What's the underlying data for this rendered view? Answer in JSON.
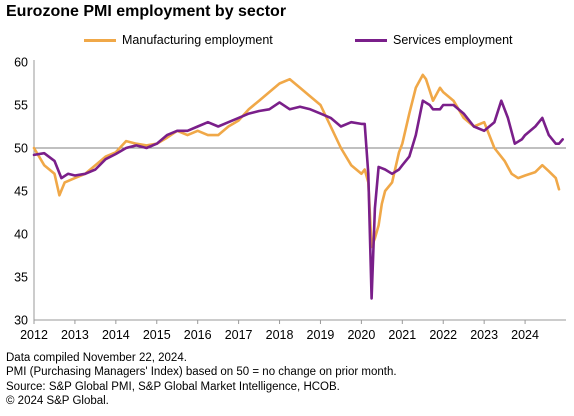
{
  "title": "Eurozone PMI employment by sector",
  "footer": {
    "line1": "Data compiled November 22, 2024.",
    "line2": "PMI (Purchasing Managers' Index) based on 50 = no change on prior month.",
    "line3": "Source: S&P Global PMI, S&P Global Market Intelligence, HCOB.",
    "line4": "© 2024 S&P Global."
  },
  "chart_data": {
    "type": "line",
    "title": "Eurozone PMI employment by sector",
    "xlabel": "",
    "ylabel": "",
    "xlim": [
      2012,
      2024.92
    ],
    "ylim": [
      30,
      60
    ],
    "x_ticks": [
      "2012",
      "2013",
      "2014",
      "2015",
      "2016",
      "2017",
      "2018",
      "2019",
      "2020",
      "2021",
      "2022",
      "2023",
      "2024"
    ],
    "y_ticks": [
      30,
      35,
      40,
      45,
      50,
      55,
      60
    ],
    "reference_line": 50,
    "legend_position": "top",
    "grid": false,
    "series": [
      {
        "name": "Manufacturing employment",
        "color": "#F0A848",
        "points": [
          [
            2012.0,
            50.0
          ],
          [
            2012.25,
            48.0
          ],
          [
            2012.5,
            47.0
          ],
          [
            2012.62,
            44.5
          ],
          [
            2012.75,
            46.0
          ],
          [
            2013.0,
            46.5
          ],
          [
            2013.25,
            47.0
          ],
          [
            2013.5,
            48.0
          ],
          [
            2013.75,
            49.0
          ],
          [
            2014.0,
            49.5
          ],
          [
            2014.25,
            50.8
          ],
          [
            2014.5,
            50.5
          ],
          [
            2014.75,
            50.3
          ],
          [
            2015.0,
            50.5
          ],
          [
            2015.25,
            51.2
          ],
          [
            2015.5,
            52.0
          ],
          [
            2015.75,
            51.5
          ],
          [
            2016.0,
            52.0
          ],
          [
            2016.25,
            51.5
          ],
          [
            2016.5,
            51.5
          ],
          [
            2016.75,
            52.5
          ],
          [
            2017.0,
            53.2
          ],
          [
            2017.25,
            54.5
          ],
          [
            2017.5,
            55.5
          ],
          [
            2017.75,
            56.5
          ],
          [
            2018.0,
            57.5
          ],
          [
            2018.25,
            58.0
          ],
          [
            2018.5,
            57.0
          ],
          [
            2018.75,
            56.0
          ],
          [
            2019.0,
            55.0
          ],
          [
            2019.25,
            52.5
          ],
          [
            2019.5,
            50.0
          ],
          [
            2019.75,
            48.0
          ],
          [
            2020.0,
            47.0
          ],
          [
            2020.08,
            47.5
          ],
          [
            2020.17,
            46.0
          ],
          [
            2020.25,
            38.5
          ],
          [
            2020.33,
            39.5
          ],
          [
            2020.42,
            41.0
          ],
          [
            2020.5,
            43.5
          ],
          [
            2020.58,
            45.0
          ],
          [
            2020.75,
            46.0
          ],
          [
            2020.92,
            49.5
          ],
          [
            2021.0,
            50.5
          ],
          [
            2021.17,
            54.0
          ],
          [
            2021.33,
            57.0
          ],
          [
            2021.5,
            58.5
          ],
          [
            2021.58,
            58.0
          ],
          [
            2021.75,
            55.5
          ],
          [
            2021.92,
            57.0
          ],
          [
            2022.0,
            56.5
          ],
          [
            2022.25,
            55.5
          ],
          [
            2022.5,
            53.5
          ],
          [
            2022.75,
            52.5
          ],
          [
            2023.0,
            53.0
          ],
          [
            2023.25,
            50.0
          ],
          [
            2023.5,
            48.5
          ],
          [
            2023.67,
            47.0
          ],
          [
            2023.83,
            46.5
          ],
          [
            2024.0,
            46.8
          ],
          [
            2024.25,
            47.2
          ],
          [
            2024.42,
            48.0
          ],
          [
            2024.58,
            47.3
          ],
          [
            2024.75,
            46.5
          ],
          [
            2024.83,
            45.2
          ]
        ]
      },
      {
        "name": "Services employment",
        "color": "#7A1F8A",
        "points": [
          [
            2012.0,
            49.2
          ],
          [
            2012.25,
            49.4
          ],
          [
            2012.5,
            48.5
          ],
          [
            2012.67,
            46.5
          ],
          [
            2012.83,
            47.0
          ],
          [
            2013.0,
            46.8
          ],
          [
            2013.25,
            47.0
          ],
          [
            2013.5,
            47.5
          ],
          [
            2013.75,
            48.7
          ],
          [
            2014.0,
            49.3
          ],
          [
            2014.25,
            50.0
          ],
          [
            2014.5,
            50.3
          ],
          [
            2014.75,
            50.0
          ],
          [
            2015.0,
            50.5
          ],
          [
            2015.25,
            51.5
          ],
          [
            2015.5,
            52.0
          ],
          [
            2015.75,
            52.0
          ],
          [
            2016.0,
            52.5
          ],
          [
            2016.25,
            53.0
          ],
          [
            2016.5,
            52.5
          ],
          [
            2016.75,
            53.0
          ],
          [
            2017.0,
            53.5
          ],
          [
            2017.25,
            54.0
          ],
          [
            2017.5,
            54.3
          ],
          [
            2017.75,
            54.5
          ],
          [
            2018.0,
            55.3
          ],
          [
            2018.25,
            54.5
          ],
          [
            2018.5,
            54.8
          ],
          [
            2018.75,
            54.5
          ],
          [
            2019.0,
            54.0
          ],
          [
            2019.25,
            53.5
          ],
          [
            2019.5,
            52.5
          ],
          [
            2019.75,
            53.0
          ],
          [
            2020.0,
            52.8
          ],
          [
            2020.08,
            52.8
          ],
          [
            2020.17,
            47.0
          ],
          [
            2020.25,
            32.5
          ],
          [
            2020.33,
            43.0
          ],
          [
            2020.42,
            47.8
          ],
          [
            2020.58,
            47.5
          ],
          [
            2020.75,
            47.0
          ],
          [
            2020.92,
            47.5
          ],
          [
            2021.0,
            48.0
          ],
          [
            2021.17,
            49.0
          ],
          [
            2021.33,
            51.5
          ],
          [
            2021.5,
            55.5
          ],
          [
            2021.67,
            55.0
          ],
          [
            2021.75,
            54.5
          ],
          [
            2021.92,
            54.5
          ],
          [
            2022.0,
            55.0
          ],
          [
            2022.25,
            55.0
          ],
          [
            2022.5,
            54.0
          ],
          [
            2022.75,
            52.5
          ],
          [
            2023.0,
            52.0
          ],
          [
            2023.25,
            53.0
          ],
          [
            2023.42,
            55.5
          ],
          [
            2023.58,
            53.5
          ],
          [
            2023.75,
            50.5
          ],
          [
            2023.92,
            51.0
          ],
          [
            2024.0,
            51.5
          ],
          [
            2024.25,
            52.5
          ],
          [
            2024.42,
            53.5
          ],
          [
            2024.58,
            51.5
          ],
          [
            2024.75,
            50.5
          ],
          [
            2024.83,
            50.5
          ],
          [
            2024.92,
            51.0
          ]
        ]
      }
    ]
  }
}
